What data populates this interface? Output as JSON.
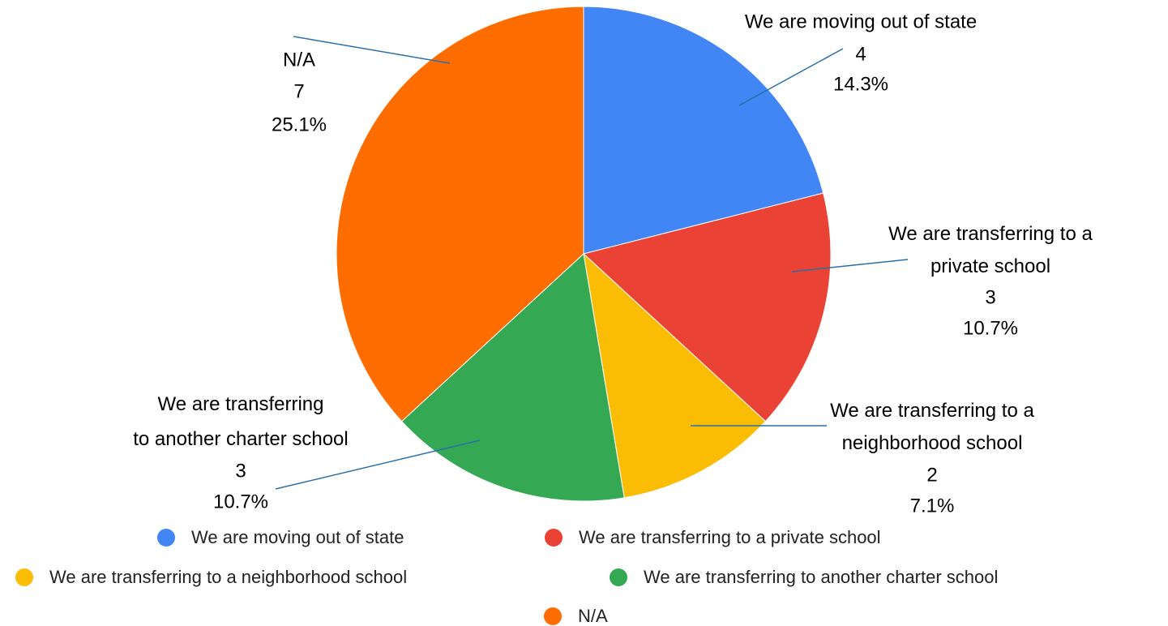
{
  "chart_data": {
    "type": "pie",
    "categories": [
      "We are moving out of state",
      "We are transferring to a private school",
      "We are transferring to a neighborhood school",
      "We are transferring to another charter school",
      "N/A"
    ],
    "values": [
      4,
      3,
      2,
      3,
      7
    ],
    "percent_labels": [
      "14.3%",
      "10.7%",
      "7.1%",
      "10.7%",
      "25.1%"
    ],
    "colors": [
      "#4285f4",
      "#ea4335",
      "#fbbc04",
      "#34a853",
      "#ff6d01"
    ],
    "legend": "bottom"
  }
}
